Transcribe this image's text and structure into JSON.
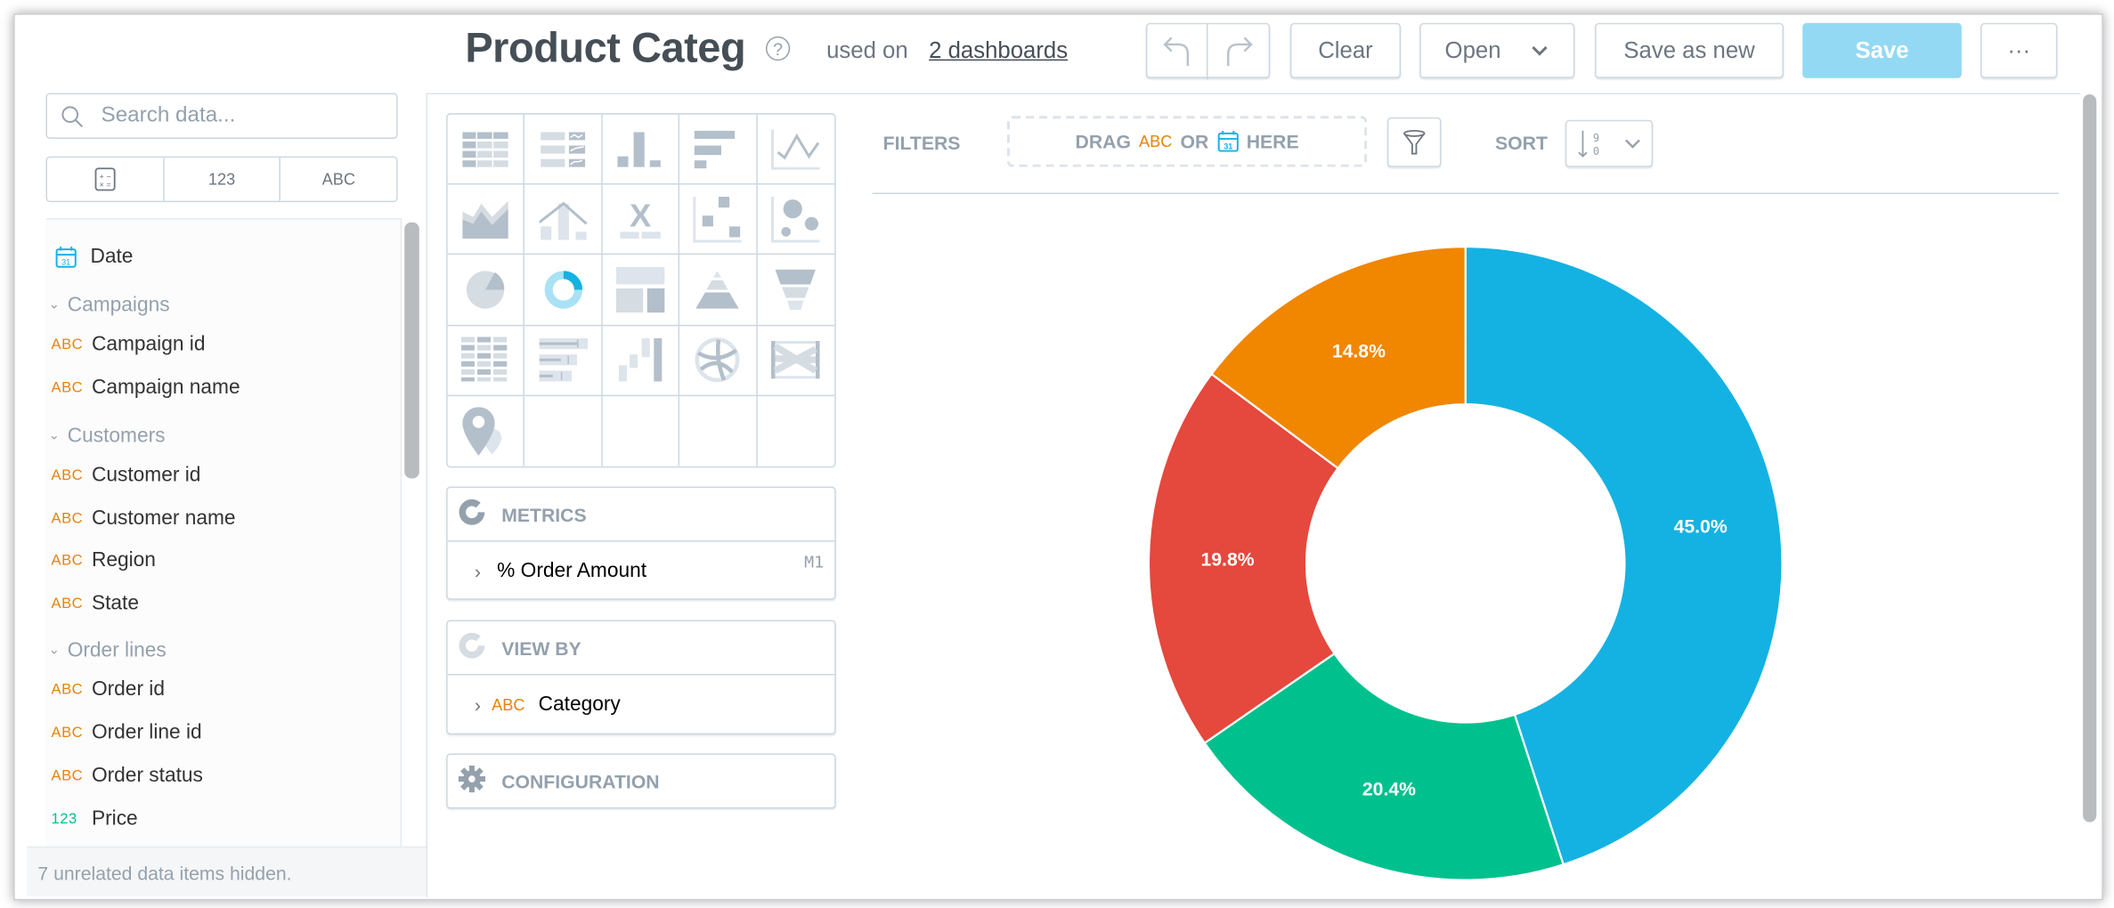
{
  "header": {
    "title": "Product Categ",
    "help_icon": "?",
    "used_on_label": "used on",
    "dashboards_link": "2 dashboards",
    "undo_icon": "undo-icon",
    "redo_icon": "redo-icon",
    "clear_label": "Clear",
    "open_label": "Open",
    "save_as_new_label": "Save as new",
    "save_label": "Save",
    "more_label": "···"
  },
  "sidebar": {
    "search_placeholder": "Search data...",
    "type_filters": [
      "calculator-icon",
      "123",
      "ABC"
    ],
    "items": [
      {
        "kind": "date",
        "label": "Date"
      },
      {
        "kind": "group",
        "label": "Campaigns"
      },
      {
        "kind": "attr",
        "type": "ABC",
        "label": "Campaign id"
      },
      {
        "kind": "attr",
        "type": "ABC",
        "label": "Campaign name"
      },
      {
        "kind": "group",
        "label": "Customers"
      },
      {
        "kind": "attr",
        "type": "ABC",
        "label": "Customer id"
      },
      {
        "kind": "attr",
        "type": "ABC",
        "label": "Customer name"
      },
      {
        "kind": "attr",
        "type": "ABC",
        "label": "Region"
      },
      {
        "kind": "attr",
        "type": "ABC",
        "label": "State"
      },
      {
        "kind": "group",
        "label": "Order lines"
      },
      {
        "kind": "attr",
        "type": "ABC",
        "label": "Order id"
      },
      {
        "kind": "attr",
        "type": "ABC",
        "label": "Order line id"
      },
      {
        "kind": "attr",
        "type": "ABC",
        "label": "Order status"
      },
      {
        "kind": "fact",
        "type": "123",
        "label": "Price"
      }
    ],
    "footer": "7 unrelated data items hidden."
  },
  "chart_types": {
    "items": [
      "table",
      "repeater",
      "column",
      "bar",
      "line",
      "area",
      "combo",
      "headline",
      "scatter",
      "bubble",
      "pie",
      "donut",
      "treemap",
      "pyramid",
      "funnel",
      "heatmap",
      "bullet",
      "waterfall",
      "dependency-wheel",
      "sankey",
      "geo-pushpin"
    ],
    "selected": "donut"
  },
  "buckets": {
    "metrics": {
      "title": "METRICS",
      "item": "% Order Amount",
      "badge": "M1"
    },
    "view_by": {
      "title": "VIEW BY",
      "item_type": "ABC",
      "item": "Category"
    },
    "configuration": {
      "title": "CONFIGURATION"
    }
  },
  "filters": {
    "label": "FILTERS",
    "drag": "DRAG",
    "abc": "ABC",
    "or": "OR",
    "here": "HERE",
    "sort_label": "SORT"
  },
  "colors": {
    "accent": "#14b2e2",
    "attribute": "#e8830b",
    "fact": "#00c18d",
    "save_button": "#93d9f3"
  },
  "chart_data": {
    "type": "pie",
    "variant": "donut",
    "values": [
      45.0,
      20.4,
      19.8,
      14.8
    ],
    "data_labels": [
      "45.0%",
      "20.4%",
      "19.8%",
      "14.8%"
    ],
    "colors": [
      "#14b2e2",
      "#00c18d",
      "#e5483c",
      "#f18600"
    ],
    "start_angle": "top, clockwise"
  }
}
